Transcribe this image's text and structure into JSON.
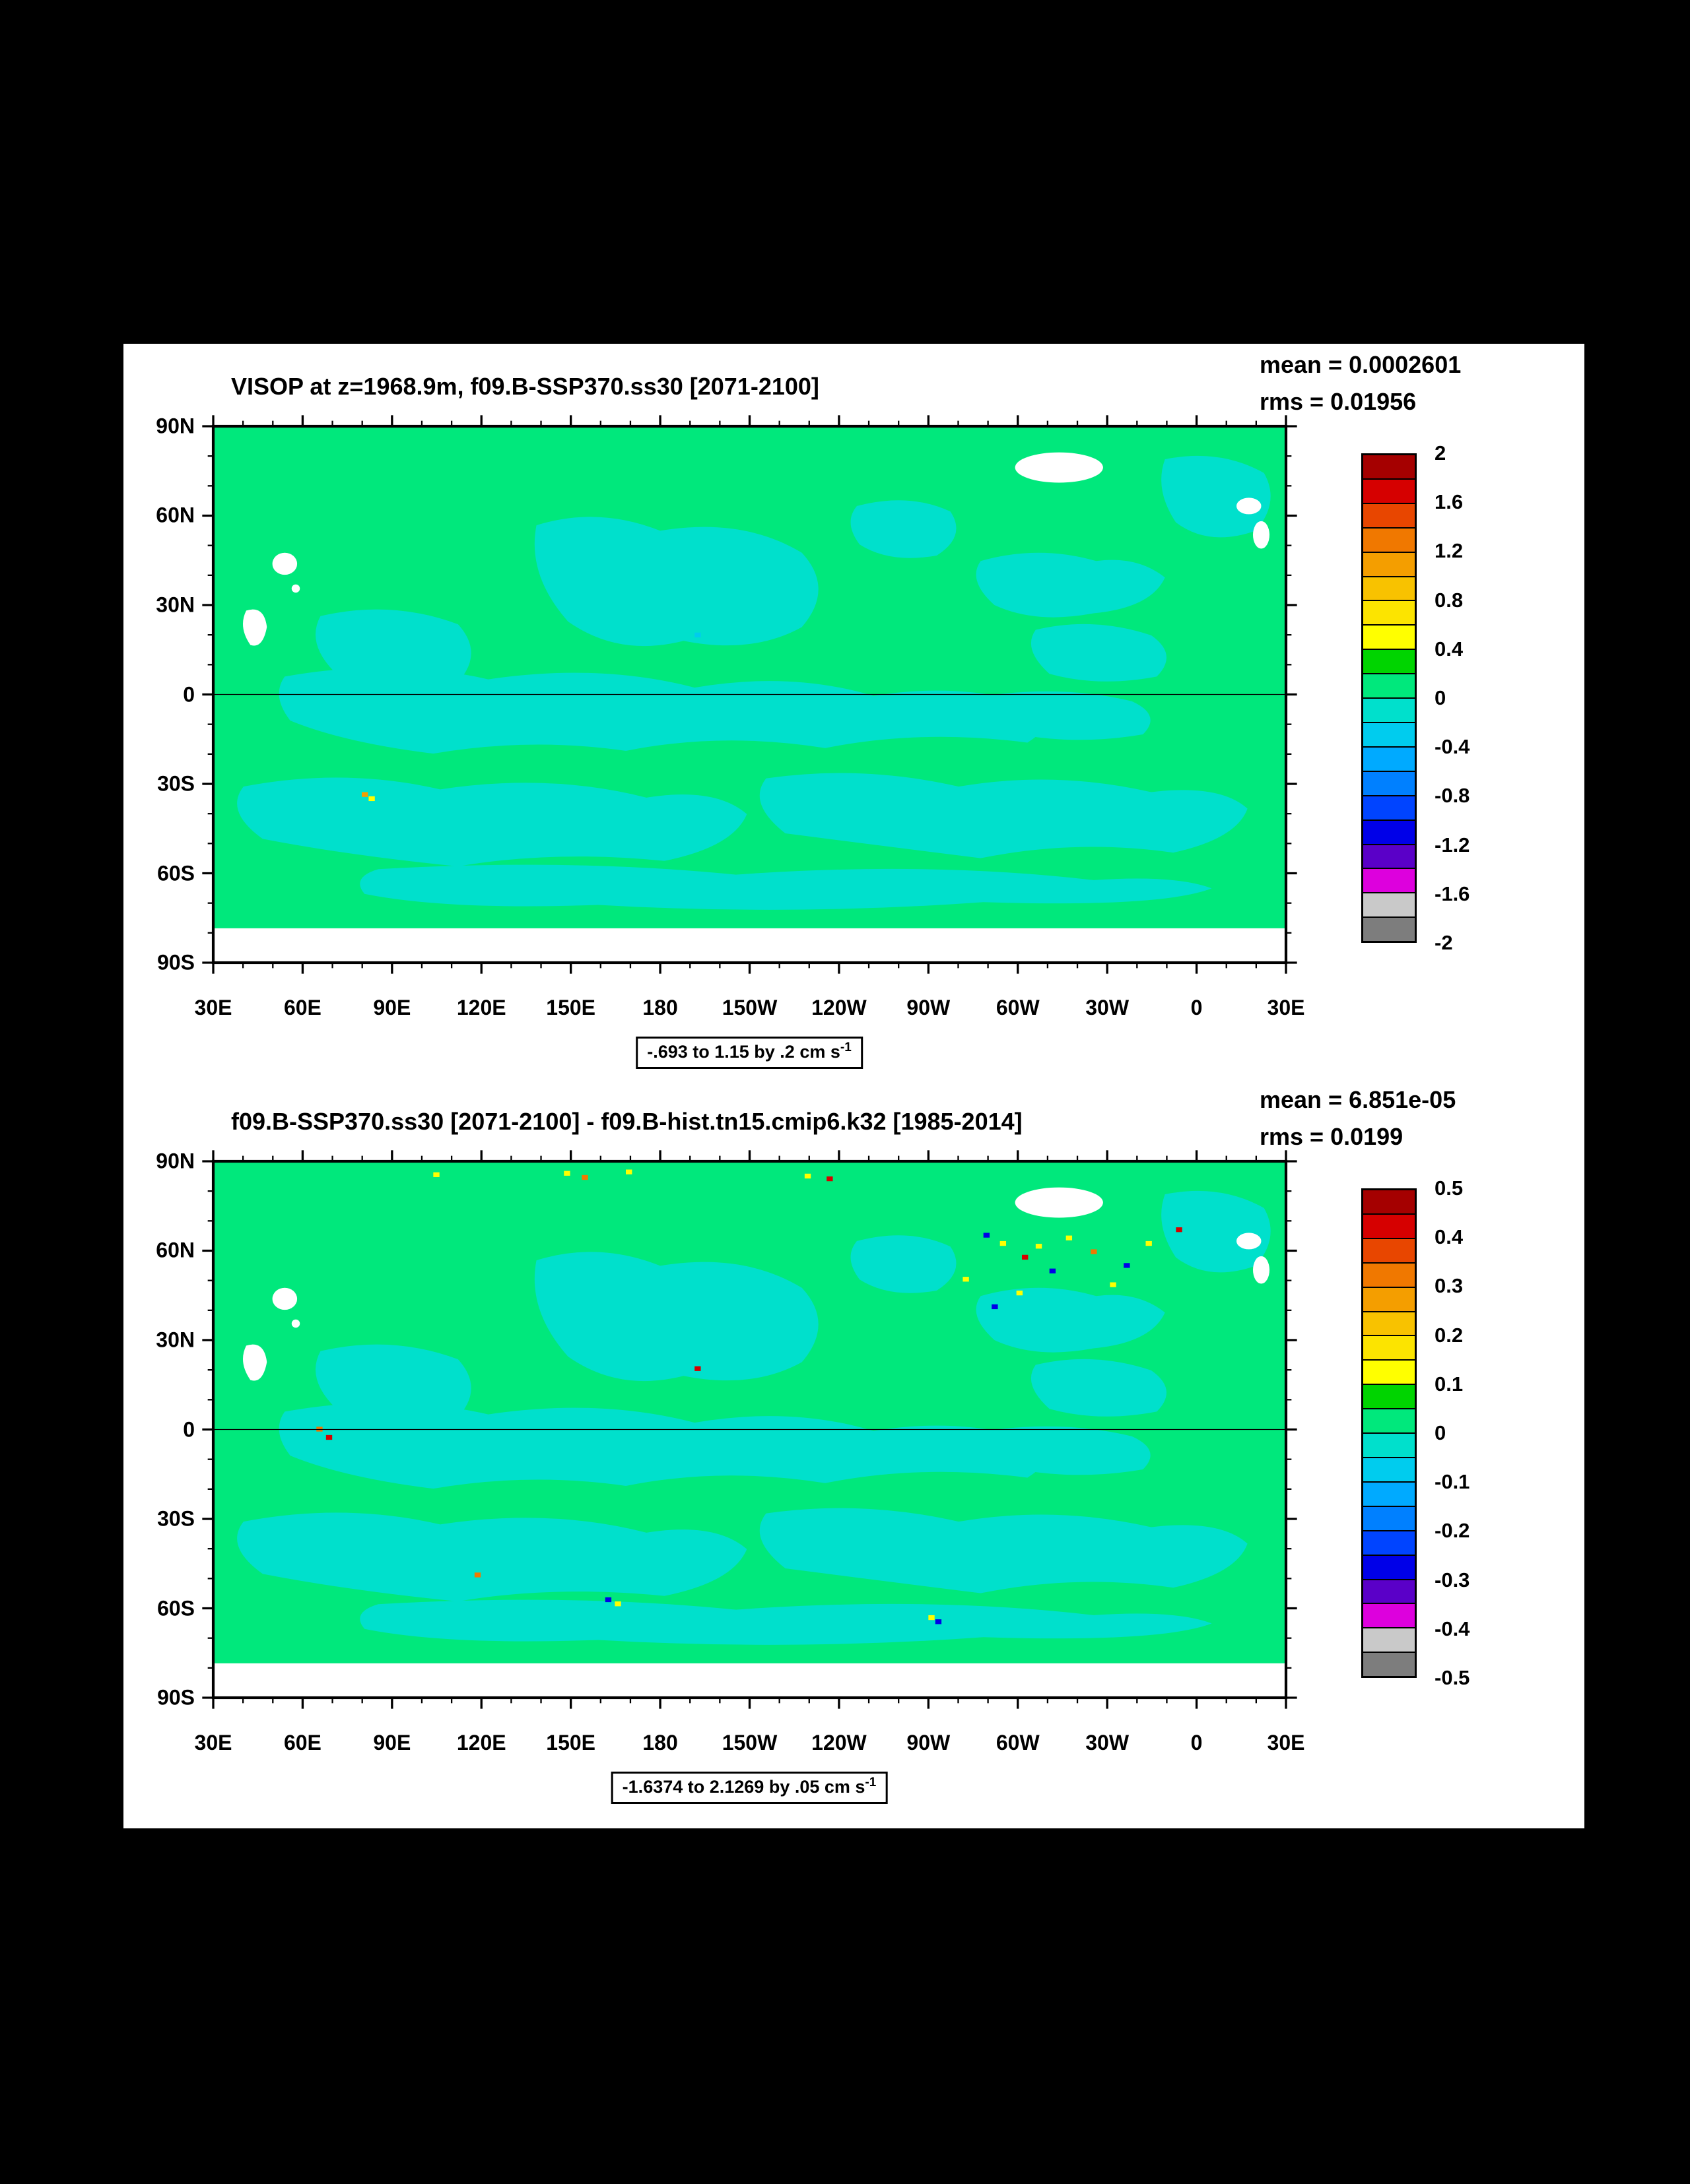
{
  "colors": {
    "page_bg": "#000000",
    "paper_bg": "#ffffff",
    "frame": "#000000",
    "field_green": "#00e87c",
    "field_cyan": "#00e0cc",
    "land_mask": "#ffffff"
  },
  "palette": [
    "#a50000",
    "#d60000",
    "#e84600",
    "#f07800",
    "#f49e00",
    "#f8c200",
    "#fce400",
    "#ffff00",
    "#00d400",
    "#00e87c",
    "#00e0cc",
    "#00ccee",
    "#00aaff",
    "#0080ff",
    "#0044ff",
    "#0000e8",
    "#5a00c8",
    "#dd00dd",
    "#c9c9c9",
    "#7d7d7d"
  ],
  "axes": {
    "lon_labels": [
      "30E",
      "60E",
      "90E",
      "120E",
      "150E",
      "180",
      "150W",
      "120W",
      "90W",
      "60W",
      "30W",
      "0",
      "30E"
    ],
    "lat_labels": [
      "90N",
      "60N",
      "30N",
      "0",
      "30S",
      "60S",
      "90S"
    ]
  },
  "panels": [
    {
      "id": "top",
      "title": "VISOP at z=1968.9m, f09.B-SSP370.ss30 [2071-2100]",
      "mean": "mean = 0.0002601",
      "rms": "rms = 0.01956",
      "range_text": "-.693 to 1.15 by .2 cm s",
      "range_exp": "-1",
      "colorbar_labels": [
        "2",
        "1.6",
        "1.2",
        "0.8",
        "0.4",
        "0",
        "-0.4",
        "-0.8",
        "-1.2",
        "-1.6",
        "-2"
      ]
    },
    {
      "id": "bottom",
      "title": "f09.B-SSP370.ss30 [2071-2100] - f09.B-hist.tn15.cmip6.k32 [1985-2014]",
      "mean": "mean = 6.851e-05",
      "rms": "rms = 0.0199",
      "range_text": "-1.6374 to 2.1269 by .05 cm s",
      "range_exp": "-1",
      "colorbar_labels": [
        "0.5",
        "0.4",
        "0.3",
        "0.2",
        "0.1",
        "0",
        "-0.1",
        "-0.2",
        "-0.3",
        "-0.4",
        "-0.5"
      ]
    }
  ],
  "chart_data": [
    {
      "type": "heatmap",
      "title": "VISOP at z=1968.9m, f09.B-SSP370.ss30 [2071-2100]",
      "projection": "global cylindrical equidistant map, longitude from 30E eastward around the globe back to 30E, latitude 90S-90N",
      "x_tick_labels": [
        "30E",
        "60E",
        "90E",
        "120E",
        "150E",
        "180",
        "150W",
        "120W",
        "90W",
        "60W",
        "30W",
        "0",
        "30E"
      ],
      "y_tick_labels": [
        "90N",
        "60N",
        "30N",
        "0",
        "30S",
        "60S",
        "90S"
      ],
      "mean": 0.0002601,
      "rms": 0.01956,
      "field_min": -0.693,
      "field_max": 1.15,
      "contour_interval": 0.2,
      "units": "cm s-1",
      "colorbar_levels": [
        2,
        1.6,
        1.2,
        0.8,
        0.4,
        0,
        -0.4,
        -0.8,
        -1.2,
        -1.6,
        -2
      ],
      "colorbar_cells": 20,
      "legend_position": "right",
      "grid": false,
      "field_description": "ocean field near zero everywhere: mostly 0 to 0.2 (bright green) with -0.2 to 0 (turquoise) patches in the tropical band, subpolar North Pacific/Atlantic and Southern Ocean; land/ice masked white (Greenland ellipse, small islands); no data south of ~78S (white strip); thin black line along the equator"
    },
    {
      "type": "heatmap",
      "title": "f09.B-SSP370.ss30 [2071-2100] - f09.B-hist.tn15.cmip6.k32 [1985-2014]",
      "projection": "global cylindrical equidistant map, longitude from 30E eastward around the globe back to 30E, latitude 90S-90N",
      "x_tick_labels": [
        "30E",
        "60E",
        "90E",
        "120E",
        "150E",
        "180",
        "150W",
        "120W",
        "90W",
        "60W",
        "30W",
        "0",
        "30E"
      ],
      "y_tick_labels": [
        "90N",
        "60N",
        "30N",
        "0",
        "30S",
        "60S",
        "90S"
      ],
      "mean": 6.851e-05,
      "rms": 0.0199,
      "field_min": -1.6374,
      "field_max": 2.1269,
      "contour_interval": 0.05,
      "units": "cm s-1",
      "colorbar_levels": [
        0.5,
        0.4,
        0.3,
        0.2,
        0.1,
        0,
        -0.1,
        -0.2,
        -0.3,
        -0.4,
        -0.5
      ],
      "colorbar_cells": 20,
      "legend_position": "right",
      "grid": false,
      "field_description": "difference field near zero: same green/turquoise pattern as top panel but with scattered small extreme speckles (yellow, red, blue, orange) concentrated in the subpolar North Atlantic, along ~85N, near the equator and in the Southern Ocean; land/ice masked white; no data south of ~78S"
    }
  ]
}
